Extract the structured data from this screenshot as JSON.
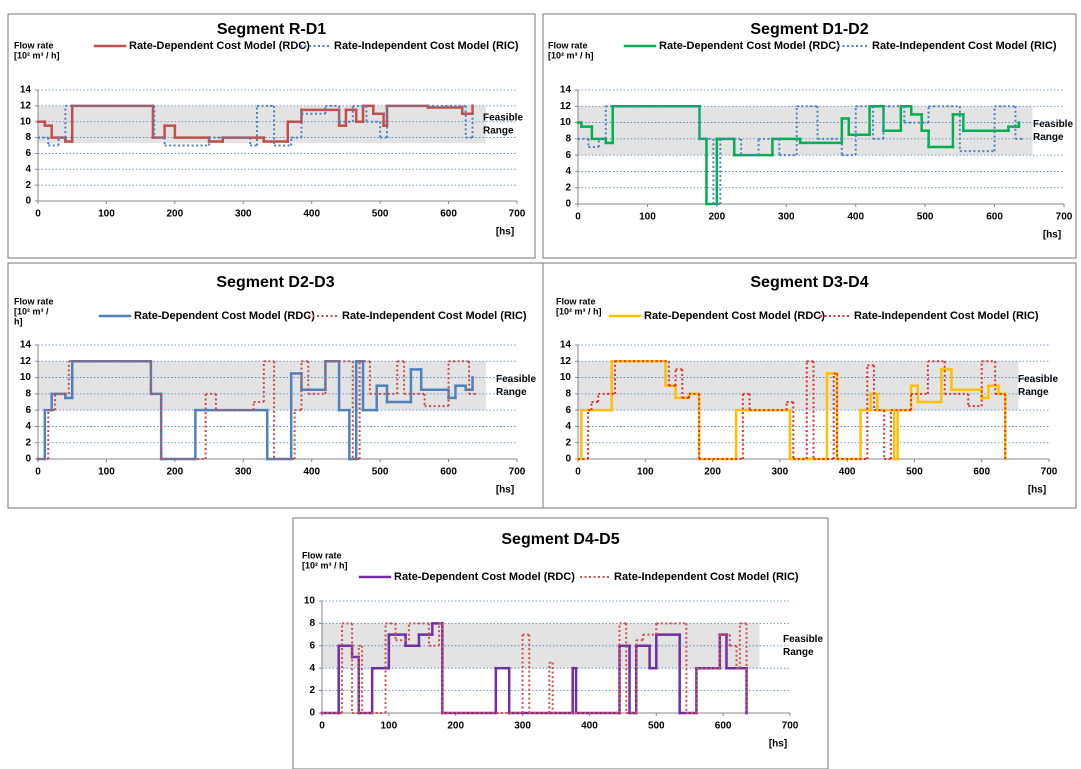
{
  "chart_data": [
    {
      "type": "step",
      "title": "Segment R-D1",
      "ylabel": [
        "Flow rate",
        "[10² m³ / h]"
      ],
      "xlabel": "[hs]",
      "band": [
        7.3,
        12
      ],
      "band_label": [
        "Feasible",
        "Range"
      ],
      "grid": true,
      "xlim": [
        0,
        700
      ],
      "xticks": [
        0,
        100,
        200,
        300,
        400,
        500,
        600,
        700
      ],
      "ylim": [
        0,
        14
      ],
      "yticks": [
        0,
        2,
        4,
        6,
        8,
        10,
        12,
        14
      ],
      "series": [
        {
          "name": "Rate-Dependent Cost Model (RDC)",
          "color": "#c0504d",
          "style": "solid",
          "x": [
            0,
            10,
            20,
            40,
            50,
            168,
            185,
            200,
            250,
            270,
            330,
            365,
            385,
            440,
            450,
            465,
            475,
            490,
            505,
            510,
            570,
            620,
            635
          ],
          "values": [
            10,
            9.5,
            8,
            7.5,
            12,
            8,
            9.5,
            8,
            7.5,
            8,
            7.5,
            10,
            11.5,
            9.5,
            11.5,
            10,
            12,
            11,
            9.5,
            12,
            11.8,
            11,
            12
          ]
        },
        {
          "name": "Rate-Independent Cost Model (RIC)",
          "color": "#4f81bd",
          "style": "dotted",
          "x": [
            0,
            15,
            30,
            40,
            170,
            185,
            250,
            310,
            320,
            345,
            370,
            385,
            420,
            440,
            460,
            480,
            500,
            510,
            625,
            635
          ],
          "values": [
            8,
            7,
            8,
            12,
            8,
            7,
            8,
            7,
            12,
            7,
            8,
            11,
            12,
            10,
            12,
            10,
            8,
            12,
            8,
            11
          ]
        }
      ]
    },
    {
      "type": "step",
      "title": "Segment D1-D2",
      "ylabel": [
        "Flow rate",
        "[10² m³ / h]"
      ],
      "xlabel": "[hs]",
      "band": [
        6,
        12
      ],
      "band_label": [
        "Feasible",
        "Range"
      ],
      "grid": true,
      "xlim": [
        0,
        700
      ],
      "xticks": [
        0,
        100,
        200,
        300,
        400,
        500,
        600,
        700
      ],
      "ylim": [
        0,
        14
      ],
      "yticks": [
        0,
        2,
        4,
        6,
        8,
        10,
        12,
        14
      ],
      "series": [
        {
          "name": "Rate-Dependent Cost Model (RDC)",
          "color": "#00b050",
          "style": "solid",
          "x": [
            0,
            5,
            20,
            40,
            50,
            175,
            185,
            200,
            225,
            280,
            320,
            380,
            390,
            420,
            440,
            465,
            480,
            495,
            505,
            540,
            555,
            620,
            635
          ],
          "values": [
            10,
            9.5,
            8,
            7.5,
            12,
            8,
            0,
            8,
            6,
            8,
            7.5,
            10.5,
            8.5,
            12,
            9,
            12,
            11,
            9,
            7,
            11,
            9,
            9.5,
            10
          ]
        },
        {
          "name": "Rate-Independent Cost Model (RIC)",
          "color": "#4f81bd",
          "style": "dotted",
          "x": [
            0,
            15,
            30,
            40,
            175,
            195,
            205,
            235,
            260,
            290,
            315,
            345,
            380,
            400,
            425,
            440,
            470,
            505,
            550,
            600,
            630,
            640
          ],
          "values": [
            8,
            7,
            8,
            12,
            8,
            0,
            8,
            6,
            8,
            6,
            12,
            8,
            6,
            12,
            8,
            12,
            10,
            12,
            6.5,
            12,
            8,
            8
          ]
        }
      ]
    },
    {
      "type": "step",
      "title": "Segment D2-D3",
      "ylabel": [
        "Flow rate",
        "[10² m³ /",
        "h]"
      ],
      "xlabel": "[hs]",
      "band": [
        6,
        12
      ],
      "band_label": [
        "Feasible",
        "Range"
      ],
      "grid": true,
      "xlim": [
        0,
        700
      ],
      "xticks": [
        0,
        100,
        200,
        300,
        400,
        500,
        600,
        700
      ],
      "ylim": [
        0,
        14
      ],
      "yticks": [
        0,
        2,
        4,
        6,
        8,
        10,
        12,
        14
      ],
      "series": [
        {
          "name": "Rate-Dependent Cost Model (RDC)",
          "color": "#4f81bd",
          "style": "solid",
          "x": [
            0,
            10,
            20,
            40,
            50,
            165,
            180,
            230,
            335,
            370,
            385,
            420,
            440,
            455,
            465,
            475,
            495,
            510,
            545,
            560,
            600,
            610,
            625,
            635
          ],
          "values": [
            0,
            6,
            8,
            7.5,
            12,
            8,
            0,
            6,
            0,
            10.5,
            8.5,
            12,
            6,
            0,
            12,
            6,
            9,
            7,
            11,
            8.5,
            7.5,
            9,
            8.5,
            10
          ]
        },
        {
          "name": "Rate-Independent Cost Model (RIC)",
          "color": "#c0504d",
          "style": "dotted",
          "x": [
            0,
            15,
            25,
            45,
            165,
            180,
            245,
            260,
            315,
            330,
            345,
            375,
            385,
            395,
            420,
            460,
            470,
            485,
            525,
            535,
            565,
            600,
            630,
            640
          ],
          "values": [
            0,
            6,
            8,
            12,
            8,
            0,
            8,
            6,
            7,
            12,
            0,
            6,
            12,
            8,
            12,
            0,
            12,
            8,
            12,
            8,
            6.5,
            12,
            8,
            8
          ]
        }
      ]
    },
    {
      "type": "step",
      "title": "Segment D3-D4",
      "ylabel": [
        "Flow rate",
        "[10² m³ / h]"
      ],
      "xlabel": "[hs]",
      "band": [
        6,
        12
      ],
      "band_label": [
        "Feasible",
        "Range"
      ],
      "grid": true,
      "xlim": [
        0,
        700
      ],
      "xticks": [
        0,
        100,
        200,
        300,
        400,
        500,
        600,
        700
      ],
      "ylim": [
        0,
        14
      ],
      "yticks": [
        0,
        2,
        4,
        6,
        8,
        10,
        12,
        14
      ],
      "series": [
        {
          "name": "Rate-Dependent Cost Model (RDC)",
          "color": "#ffc000",
          "style": "solid",
          "x": [
            0,
            5,
            50,
            130,
            145,
            165,
            180,
            235,
            315,
            370,
            385,
            420,
            435,
            445,
            470,
            475,
            495,
            505,
            540,
            555,
            600,
            610,
            625,
            635
          ],
          "values": [
            0,
            6,
            12,
            9,
            7.5,
            8,
            0,
            6,
            0,
            10.5,
            0,
            6,
            8,
            6,
            0,
            6,
            9,
            7,
            11,
            8.5,
            7.5,
            9,
            8,
            0
          ]
        },
        {
          "name": "Rate-Independent Cost Model (RIC)",
          "color": "#e03030",
          "style": "dotted",
          "x": [
            0,
            15,
            20,
            30,
            55,
            135,
            145,
            155,
            165,
            180,
            245,
            255,
            310,
            320,
            340,
            350,
            380,
            385,
            430,
            440,
            455,
            465,
            495,
            520,
            545,
            580,
            600,
            620,
            635
          ],
          "values": [
            0,
            6,
            7,
            8,
            12,
            9,
            11,
            7.5,
            8,
            0,
            8,
            6,
            7,
            0,
            12,
            0,
            10.5,
            0,
            11.5,
            6,
            0,
            6,
            8,
            12,
            8,
            6.5,
            12,
            8,
            0
          ]
        }
      ]
    },
    {
      "type": "step",
      "title": "Segment D4-D5",
      "ylabel": [
        "Flow rate",
        "[10² m³ / h]"
      ],
      "xlabel": "[hs]",
      "band": [
        4,
        8
      ],
      "band_label": [
        "Feasible",
        "Range"
      ],
      "grid": true,
      "xlim": [
        0,
        700
      ],
      "xticks": [
        0,
        100,
        200,
        300,
        400,
        500,
        600,
        700
      ],
      "ylim": [
        0,
        10
      ],
      "yticks": [
        0,
        2,
        4,
        6,
        8,
        10
      ],
      "series": [
        {
          "name": "Rate-Dependent Cost Model (RDC)",
          "color": "#7030a0",
          "style": "solid",
          "x": [
            0,
            25,
            45,
            55,
            75,
            100,
            125,
            145,
            165,
            180,
            260,
            280,
            375,
            380,
            445,
            460,
            470,
            490,
            500,
            535,
            560,
            595,
            605,
            635
          ],
          "values": [
            0,
            6,
            5,
            0,
            4,
            7,
            6,
            7,
            8,
            0,
            4,
            0,
            4,
            0,
            6,
            0,
            6,
            4,
            7,
            0,
            4,
            7,
            4,
            0
          ]
        },
        {
          "name": "Rate-Independent Cost Model (RIC)",
          "color": "#d05050",
          "style": "dotted",
          "x": [
            0,
            30,
            45,
            55,
            60,
            95,
            110,
            130,
            160,
            175,
            180,
            300,
            310,
            340,
            345,
            445,
            455,
            470,
            480,
            500,
            545,
            560,
            595,
            610,
            620,
            625,
            635
          ],
          "values": [
            0,
            8,
            0,
            6,
            0,
            8,
            6.5,
            8,
            6,
            8,
            0,
            7,
            0,
            4.5,
            0,
            8,
            0,
            6.5,
            7,
            8,
            0,
            4,
            7,
            6,
            4,
            8,
            0
          ]
        }
      ]
    }
  ]
}
